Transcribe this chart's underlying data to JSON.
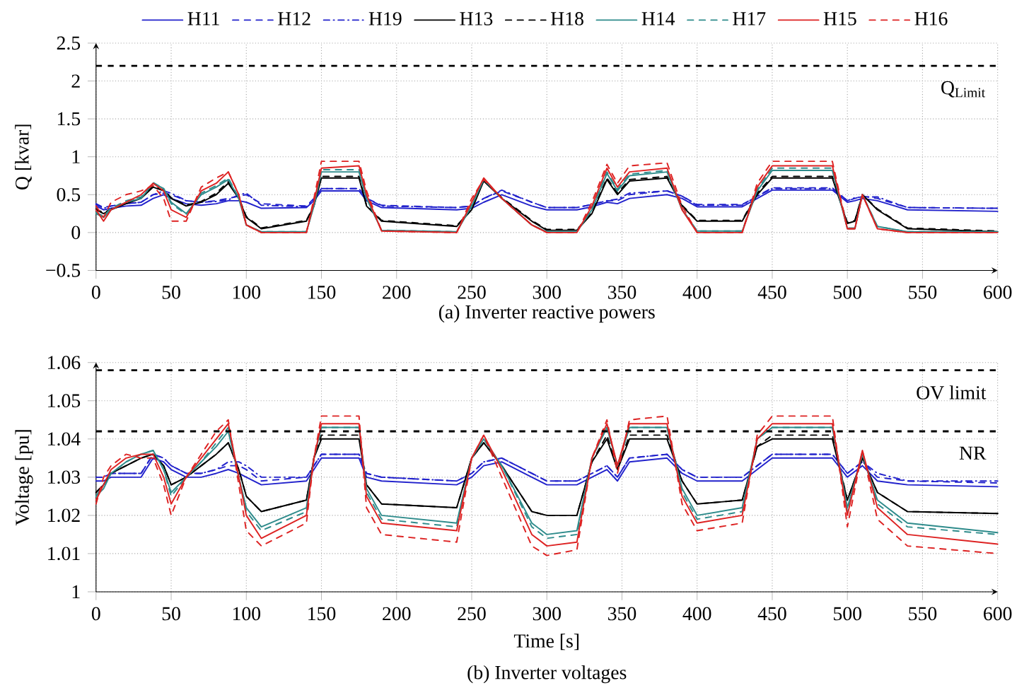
{
  "chart_data": [
    {
      "type": "line",
      "title": "(a) Inverter reactive powers",
      "ylabel": "Q [kvar]",
      "legend": "top",
      "grid": true,
      "x": [
        0,
        5,
        10,
        20,
        30,
        38,
        45,
        50,
        60,
        70,
        80,
        88,
        95,
        100,
        110,
        140,
        145,
        150,
        175,
        180,
        190,
        240,
        250,
        258,
        270,
        290,
        300,
        320,
        330,
        340,
        347,
        355,
        380,
        390,
        400,
        430,
        440,
        450,
        490,
        500,
        505,
        510,
        520,
        540,
        600
      ],
      "xlim": [
        0,
        600
      ],
      "xticks": [
        0,
        50,
        100,
        150,
        200,
        250,
        300,
        350,
        400,
        450,
        500,
        550,
        600
      ],
      "ylim": [
        -0.5,
        2.5
      ],
      "yticks": [
        {
          "value": -0.5,
          "label": "−0.5"
        },
        0,
        0.5,
        1,
        1.5,
        2,
        2.5
      ],
      "ref_lines": [
        {
          "axis": "y",
          "value": 2.2,
          "label": "Q$_{Limit}$",
          "color": "#000000",
          "line_style": "dashed"
        }
      ],
      "series": [
        {
          "name": "H11",
          "color": "#2222cc",
          "line_style": "solid",
          "values": [
            0.35,
            0.3,
            0.32,
            0.35,
            0.36,
            0.45,
            0.5,
            0.45,
            0.38,
            0.36,
            0.38,
            0.42,
            0.42,
            0.4,
            0.32,
            0.33,
            0.42,
            0.55,
            0.55,
            0.42,
            0.33,
            0.3,
            0.32,
            0.4,
            0.5,
            0.35,
            0.3,
            0.3,
            0.34,
            0.4,
            0.38,
            0.45,
            0.5,
            0.45,
            0.34,
            0.34,
            0.45,
            0.56,
            0.56,
            0.4,
            0.42,
            0.45,
            0.42,
            0.3,
            0.28
          ]
        },
        {
          "name": "H12",
          "color": "#2222cc",
          "line_style": "dashed",
          "values": [
            0.38,
            0.33,
            0.35,
            0.38,
            0.4,
            0.5,
            0.52,
            0.5,
            0.42,
            0.4,
            0.42,
            0.45,
            0.48,
            0.5,
            0.38,
            0.35,
            0.45,
            0.58,
            0.58,
            0.45,
            0.36,
            0.33,
            0.35,
            0.45,
            0.55,
            0.4,
            0.33,
            0.33,
            0.37,
            0.42,
            0.42,
            0.5,
            0.55,
            0.48,
            0.37,
            0.37,
            0.48,
            0.59,
            0.59,
            0.42,
            0.45,
            0.48,
            0.45,
            0.33,
            0.32
          ]
        },
        {
          "name": "H19",
          "color": "#2222cc",
          "line_style": "dashdot",
          "values": [
            0.37,
            0.32,
            0.35,
            0.38,
            0.4,
            0.5,
            0.55,
            0.52,
            0.42,
            0.4,
            0.41,
            0.43,
            0.5,
            0.52,
            0.36,
            0.34,
            0.44,
            0.58,
            0.58,
            0.45,
            0.35,
            0.33,
            0.35,
            0.45,
            0.56,
            0.4,
            0.33,
            0.33,
            0.37,
            0.42,
            0.44,
            0.52,
            0.55,
            0.48,
            0.36,
            0.36,
            0.48,
            0.58,
            0.58,
            0.42,
            0.46,
            0.47,
            0.47,
            0.33,
            0.32
          ]
        },
        {
          "name": "H13",
          "color": "#000000",
          "line_style": "solid",
          "values": [
            0.3,
            0.25,
            0.3,
            0.38,
            0.45,
            0.6,
            0.55,
            0.45,
            0.35,
            0.4,
            0.5,
            0.65,
            0.45,
            0.2,
            0.05,
            0.15,
            0.35,
            0.72,
            0.72,
            0.35,
            0.15,
            0.08,
            0.3,
            0.68,
            0.45,
            0.15,
            0.03,
            0.03,
            0.25,
            0.7,
            0.5,
            0.68,
            0.72,
            0.35,
            0.15,
            0.15,
            0.5,
            0.72,
            0.72,
            0.12,
            0.15,
            0.5,
            0.3,
            0.05,
            0.01
          ]
        },
        {
          "name": "H18",
          "color": "#000000",
          "line_style": "dashed",
          "values": [
            0.31,
            0.26,
            0.31,
            0.39,
            0.46,
            0.61,
            0.56,
            0.46,
            0.36,
            0.41,
            0.52,
            0.67,
            0.46,
            0.21,
            0.06,
            0.16,
            0.36,
            0.74,
            0.74,
            0.36,
            0.16,
            0.09,
            0.31,
            0.69,
            0.46,
            0.16,
            0.04,
            0.04,
            0.26,
            0.72,
            0.52,
            0.7,
            0.74,
            0.36,
            0.16,
            0.16,
            0.52,
            0.74,
            0.74,
            0.13,
            0.16,
            0.5,
            0.31,
            0.06,
            0.02
          ]
        },
        {
          "name": "H14",
          "color": "#2e8b8b",
          "line_style": "solid",
          "values": [
            0.25,
            0.2,
            0.3,
            0.4,
            0.45,
            0.65,
            0.58,
            0.4,
            0.25,
            0.5,
            0.6,
            0.7,
            0.45,
            0.1,
            0.01,
            0.01,
            0.35,
            0.8,
            0.8,
            0.45,
            0.03,
            0.01,
            0.35,
            0.7,
            0.45,
            0.1,
            0.01,
            0.01,
            0.3,
            0.78,
            0.55,
            0.75,
            0.8,
            0.3,
            0.02,
            0.02,
            0.55,
            0.82,
            0.82,
            0.05,
            0.05,
            0.5,
            0.08,
            0.01,
            0.01
          ]
        },
        {
          "name": "H17",
          "color": "#2e8b8b",
          "line_style": "dashed",
          "values": [
            0.26,
            0.22,
            0.32,
            0.42,
            0.47,
            0.66,
            0.58,
            0.38,
            0.24,
            0.52,
            0.62,
            0.72,
            0.46,
            0.1,
            0.01,
            0.01,
            0.37,
            0.83,
            0.83,
            0.46,
            0.03,
            0.01,
            0.37,
            0.71,
            0.45,
            0.1,
            0.01,
            0.01,
            0.32,
            0.8,
            0.57,
            0.77,
            0.82,
            0.31,
            0.02,
            0.02,
            0.57,
            0.85,
            0.85,
            0.06,
            0.06,
            0.5,
            0.08,
            0.01,
            0.01
          ]
        },
        {
          "name": "H15",
          "color": "#dd2222",
          "line_style": "solid",
          "values": [
            0.3,
            0.15,
            0.3,
            0.4,
            0.5,
            0.65,
            0.55,
            0.3,
            0.2,
            0.55,
            0.65,
            0.8,
            0.5,
            0.1,
            0,
            0,
            0.4,
            0.85,
            0.88,
            0.5,
            0.02,
            0,
            0.4,
            0.72,
            0.45,
            0.1,
            0,
            0,
            0.35,
            0.85,
            0.6,
            0.8,
            0.85,
            0.3,
            0,
            0,
            0.6,
            0.88,
            0.88,
            0.05,
            0.05,
            0.5,
            0.05,
            0,
            0
          ]
        },
        {
          "name": "H16",
          "color": "#dd2222",
          "line_style": "dashed",
          "values": [
            0.35,
            0.2,
            0.4,
            0.5,
            0.55,
            0.62,
            0.45,
            0.15,
            0.15,
            0.6,
            0.72,
            0.8,
            0.5,
            0.1,
            0,
            0,
            0.45,
            0.94,
            0.94,
            0.55,
            0.02,
            0,
            0.45,
            0.7,
            0.45,
            0.1,
            0,
            0,
            0.4,
            0.9,
            0.65,
            0.88,
            0.92,
            0.35,
            0,
            0,
            0.65,
            0.94,
            0.94,
            0.05,
            0.05,
            0.5,
            0.05,
            0,
            0
          ]
        }
      ]
    },
    {
      "type": "line",
      "title": "(b) Inverter voltages",
      "xlabel": "Time [s]",
      "ylabel": "Voltage [pu]",
      "grid": true,
      "x": [
        0,
        5,
        10,
        20,
        30,
        38,
        45,
        50,
        60,
        70,
        80,
        88,
        95,
        100,
        110,
        140,
        145,
        150,
        175,
        180,
        190,
        240,
        250,
        258,
        270,
        290,
        300,
        320,
        330,
        340,
        347,
        355,
        380,
        390,
        400,
        430,
        440,
        450,
        490,
        500,
        510,
        520,
        540,
        600
      ],
      "xlim": [
        0,
        600
      ],
      "xticks": [
        0,
        50,
        100,
        150,
        200,
        250,
        300,
        350,
        400,
        450,
        500,
        550,
        600
      ],
      "ylim": [
        1,
        1.06
      ],
      "yticks": [
        1,
        1.01,
        1.02,
        1.03,
        1.04,
        1.05,
        1.06
      ],
      "ref_lines": [
        {
          "axis": "y",
          "value": 1.058,
          "label": "OV limit",
          "color": "#000000",
          "line_style": "dashed"
        },
        {
          "axis": "y",
          "value": 1.042,
          "label": "NR",
          "color": "#000000",
          "line_style": "dashed"
        }
      ],
      "series": [
        {
          "color": "#2222cc",
          "line_style": "solid",
          "values": [
            1.029,
            1.029,
            1.03,
            1.03,
            1.03,
            1.035,
            1.034,
            1.032,
            1.03,
            1.03,
            1.031,
            1.032,
            1.031,
            1.03,
            1.028,
            1.029,
            1.032,
            1.035,
            1.035,
            1.03,
            1.029,
            1.028,
            1.03,
            1.033,
            1.034,
            1.03,
            1.028,
            1.028,
            1.03,
            1.032,
            1.029,
            1.034,
            1.035,
            1.031,
            1.029,
            1.029,
            1.032,
            1.035,
            1.035,
            1.03,
            1.033,
            1.029,
            1.028,
            1.0275
          ]
        },
        {
          "color": "#2222cc",
          "line_style": "dashed",
          "values": [
            1.03,
            1.03,
            1.031,
            1.031,
            1.031,
            1.036,
            1.035,
            1.033,
            1.031,
            1.031,
            1.032,
            1.033,
            1.033,
            1.032,
            1.029,
            1.03,
            1.033,
            1.036,
            1.036,
            1.031,
            1.03,
            1.029,
            1.031,
            1.034,
            1.035,
            1.031,
            1.029,
            1.029,
            1.031,
            1.033,
            1.03,
            1.035,
            1.036,
            1.032,
            1.03,
            1.03,
            1.033,
            1.036,
            1.036,
            1.031,
            1.034,
            1.03,
            1.029,
            1.0285
          ]
        },
        {
          "color": "#2222cc",
          "line_style": "dashdot",
          "values": [
            1.03,
            1.03,
            1.031,
            1.031,
            1.031,
            1.036,
            1.035,
            1.033,
            1.031,
            1.031,
            1.032,
            1.034,
            1.034,
            1.033,
            1.03,
            1.03,
            1.033,
            1.036,
            1.036,
            1.031,
            1.03,
            1.029,
            1.031,
            1.034,
            1.035,
            1.031,
            1.029,
            1.029,
            1.031,
            1.033,
            1.03,
            1.035,
            1.036,
            1.032,
            1.03,
            1.03,
            1.033,
            1.036,
            1.036,
            1.031,
            1.034,
            1.031,
            1.029,
            1.029
          ]
        },
        {
          "color": "#000000",
          "line_style": "solid",
          "values": [
            1.026,
            1.028,
            1.031,
            1.033,
            1.035,
            1.036,
            1.033,
            1.028,
            1.03,
            1.033,
            1.036,
            1.039,
            1.032,
            1.025,
            1.021,
            1.024,
            1.035,
            1.04,
            1.04,
            1.028,
            1.023,
            1.022,
            1.035,
            1.039,
            1.033,
            1.021,
            1.02,
            1.02,
            1.034,
            1.04,
            1.032,
            1.04,
            1.04,
            1.029,
            1.023,
            1.024,
            1.038,
            1.04,
            1.04,
            1.024,
            1.035,
            1.026,
            1.021,
            1.0205
          ]
        },
        {
          "color": "#000000",
          "line_style": "dashed",
          "values": [
            1.026,
            1.028,
            1.031,
            1.033,
            1.035,
            1.036,
            1.033,
            1.028,
            1.03,
            1.033,
            1.036,
            1.039,
            1.032,
            1.025,
            1.021,
            1.024,
            1.035,
            1.041,
            1.041,
            1.028,
            1.023,
            1.022,
            1.035,
            1.039,
            1.033,
            1.021,
            1.02,
            1.02,
            1.034,
            1.041,
            1.032,
            1.041,
            1.041,
            1.029,
            1.023,
            1.024,
            1.038,
            1.041,
            1.041,
            1.024,
            1.035,
            1.026,
            1.021,
            1.0205
          ]
        },
        {
          "color": "#2e8b8b",
          "line_style": "solid",
          "values": [
            1.025,
            1.027,
            1.031,
            1.034,
            1.036,
            1.037,
            1.032,
            1.026,
            1.03,
            1.034,
            1.038,
            1.042,
            1.03,
            1.022,
            1.017,
            1.022,
            1.035,
            1.043,
            1.043,
            1.027,
            1.02,
            1.018,
            1.035,
            1.04,
            1.033,
            1.018,
            1.015,
            1.016,
            1.035,
            1.043,
            1.033,
            1.043,
            1.043,
            1.027,
            1.02,
            1.022,
            1.04,
            1.043,
            1.043,
            1.022,
            1.036,
            1.024,
            1.018,
            1.0155
          ]
        },
        {
          "color": "#2e8b8b",
          "line_style": "dashed",
          "values": [
            1.025,
            1.028,
            1.031,
            1.034,
            1.036,
            1.037,
            1.032,
            1.025,
            1.03,
            1.034,
            1.039,
            1.043,
            1.03,
            1.021,
            1.016,
            1.021,
            1.035,
            1.043,
            1.043,
            1.026,
            1.019,
            1.017,
            1.035,
            1.04,
            1.033,
            1.017,
            1.014,
            1.015,
            1.035,
            1.043,
            1.033,
            1.043,
            1.043,
            1.026,
            1.019,
            1.021,
            1.04,
            1.043,
            1.043,
            1.021,
            1.036,
            1.023,
            1.017,
            1.015
          ]
        },
        {
          "color": "#dd2222",
          "line_style": "solid",
          "values": [
            1.024,
            1.028,
            1.032,
            1.035,
            1.036,
            1.036,
            1.03,
            1.023,
            1.03,
            1.035,
            1.04,
            1.044,
            1.03,
            1.02,
            1.014,
            1.02,
            1.035,
            1.044,
            1.044,
            1.025,
            1.018,
            1.016,
            1.035,
            1.041,
            1.032,
            1.015,
            1.012,
            1.013,
            1.035,
            1.044,
            1.033,
            1.044,
            1.044,
            1.025,
            1.018,
            1.02,
            1.04,
            1.044,
            1.044,
            1.02,
            1.037,
            1.022,
            1.015,
            1.0125
          ]
        },
        {
          "color": "#dd2222",
          "line_style": "dashed",
          "values": [
            1.023,
            1.03,
            1.033,
            1.036,
            1.035,
            1.035,
            1.028,
            1.02,
            1.03,
            1.036,
            1.042,
            1.045,
            1.028,
            1.016,
            1.012,
            1.018,
            1.035,
            1.046,
            1.046,
            1.022,
            1.015,
            1.013,
            1.035,
            1.041,
            1.03,
            1.012,
            1.0095,
            1.011,
            1.035,
            1.045,
            1.031,
            1.045,
            1.046,
            1.023,
            1.016,
            1.018,
            1.041,
            1.046,
            1.046,
            1.017,
            1.037,
            1.019,
            1.012,
            1.01
          ]
        }
      ]
    }
  ]
}
